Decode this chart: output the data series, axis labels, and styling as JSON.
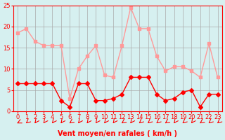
{
  "x": [
    0,
    1,
    2,
    3,
    4,
    5,
    6,
    7,
    8,
    9,
    10,
    11,
    12,
    13,
    14,
    15,
    16,
    17,
    18,
    19,
    20,
    21,
    22,
    23
  ],
  "wind_avg": [
    6.5,
    6.5,
    6.5,
    6.5,
    6.5,
    2.5,
    1.0,
    6.5,
    6.5,
    2.5,
    2.5,
    3.0,
    4.0,
    8.0,
    8.0,
    8.0,
    4.0,
    2.5,
    3.0,
    4.5,
    5.0,
    1.0,
    4.0,
    4.0
  ],
  "wind_gust": [
    18.5,
    19.5,
    16.5,
    15.5,
    15.5,
    15.5,
    3.0,
    10.0,
    13.0,
    15.5,
    8.5,
    8.0,
    15.5,
    24.5,
    19.5,
    19.5,
    13.0,
    9.5,
    10.5,
    10.5,
    9.5,
    8.0,
    16.0,
    8.0
  ],
  "arrow_angles": [
    225,
    210,
    200,
    200,
    200,
    200,
    215,
    200,
    200,
    200,
    200,
    200,
    215,
    200,
    210,
    210,
    210,
    215,
    200,
    210,
    200,
    215,
    210,
    210
  ],
  "xlabel": "Vent moyen/en rafales ( km/h )",
  "bg_color": "#d6f0f0",
  "grid_color": "#aaaaaa",
  "line_avg_color": "#ff0000",
  "line_gust_color": "#ff9999",
  "ylim": [
    0,
    25
  ],
  "yticks": [
    0,
    5,
    10,
    15,
    20,
    25
  ],
  "xticks": [
    0,
    1,
    2,
    3,
    4,
    5,
    6,
    7,
    8,
    9,
    10,
    11,
    12,
    13,
    14,
    15,
    16,
    17,
    18,
    19,
    20,
    21,
    22,
    23
  ]
}
